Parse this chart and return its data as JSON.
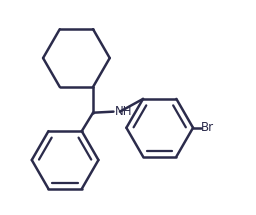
{
  "background_color": "#ffffff",
  "line_color": "#2b2b4b",
  "line_width": 1.8,
  "text_color": "#2b2b4b",
  "nh_label": "NH",
  "br_label": "Br",
  "nh_fontsize": 8.5,
  "br_fontsize": 8.5,
  "figsize": [
    2.56,
    2.15
  ],
  "dpi": 100,
  "xlim": [
    0.0,
    1.0
  ],
  "ylim": [
    0.0,
    1.0
  ]
}
